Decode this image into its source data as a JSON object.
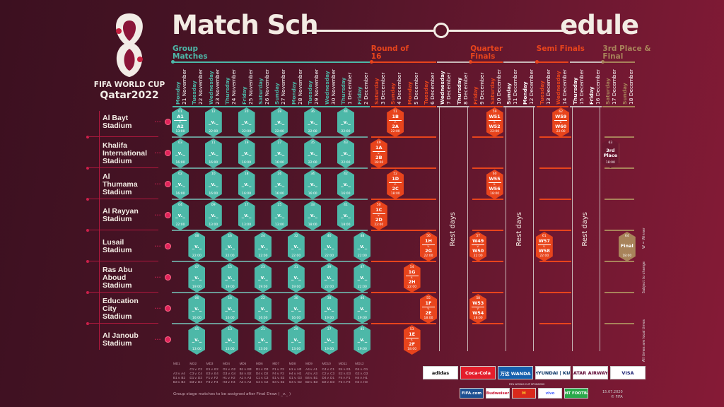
{
  "header": {
    "title_left": "Match Sch",
    "title_right": "edule",
    "logo_text_1": "FIFA WORLD CUP",
    "logo_text_2": "Qatar2022"
  },
  "phases": [
    {
      "label": "Group Matches",
      "color": "#4db8a8"
    },
    {
      "label": "Round of 16",
      "color": "#e8441c"
    },
    {
      "label": "Quarter Finals",
      "color": "#e8441c"
    },
    {
      "label": "Semi Finals",
      "color": "#e8441c"
    },
    {
      "label": "3rd Place & Final",
      "color": "#a8835a"
    }
  ],
  "days": [
    {
      "weekday": "Monday",
      "date": "21 November",
      "phase": 0
    },
    {
      "weekday": "Tuesday",
      "date": "22 November",
      "phase": 0
    },
    {
      "weekday": "Wednesday",
      "date": "23 November",
      "phase": 0
    },
    {
      "weekday": "Thursday",
      "date": "24 November",
      "phase": 0
    },
    {
      "weekday": "Friday",
      "date": "25 November",
      "phase": 0
    },
    {
      "weekday": "Saturday",
      "date": "26 November",
      "phase": 0
    },
    {
      "weekday": "Sunday",
      "date": "27 November",
      "phase": 0
    },
    {
      "weekday": "Monday",
      "date": "28 November",
      "phase": 0
    },
    {
      "weekday": "Tuesday",
      "date": "29 November",
      "phase": 0
    },
    {
      "weekday": "Wednesday",
      "date": "30 November",
      "phase": 0
    },
    {
      "weekday": "Thursday",
      "date": "1 December",
      "phase": 0
    },
    {
      "weekday": "Friday",
      "date": "2 December",
      "phase": 0
    },
    {
      "weekday": "Saturday",
      "date": "3 December",
      "phase": 1
    },
    {
      "weekday": "Sunday",
      "date": "4 December",
      "phase": 1
    },
    {
      "weekday": "Monday",
      "date": "5 December",
      "phase": 1
    },
    {
      "weekday": "Tuesday",
      "date": "6 December",
      "phase": 1
    },
    {
      "weekday": "Wednesday",
      "date": "7 December",
      "phase": -1
    },
    {
      "weekday": "Thursday",
      "date": "8 December",
      "phase": -1
    },
    {
      "weekday": "Friday",
      "date": "9 December",
      "phase": 2
    },
    {
      "weekday": "Saturday",
      "date": "10 December",
      "phase": 2
    },
    {
      "weekday": "Sunday",
      "date": "11 December",
      "phase": -1
    },
    {
      "weekday": "Monday",
      "date": "12 December",
      "phase": -1
    },
    {
      "weekday": "Tuesday",
      "date": "13 December",
      "phase": 3
    },
    {
      "weekday": "Wednesday",
      "date": "14 December",
      "phase": 3
    },
    {
      "weekday": "Thursday",
      "date": "15 December",
      "phase": -1
    },
    {
      "weekday": "Friday",
      "date": "16 December",
      "phase": -1
    },
    {
      "weekday": "Saturday",
      "date": "17 December",
      "phase": 4
    },
    {
      "weekday": "Sunday",
      "date": "18 December",
      "phase": 4
    }
  ],
  "rest_label": "Rest days",
  "stadiums": [
    {
      "name": [
        "Al Bayt",
        "Stadium"
      ],
      "matches": [
        {
          "no": "01",
          "date": "21 November",
          "home": "A1",
          "away": "A2",
          "time": "13:00",
          "stage": "group"
        },
        {
          "no": "12",
          "date": "23 November",
          "home": "_",
          "away": "_",
          "time": "22:00",
          "stage": "group"
        },
        {
          "no": "20",
          "date": "25 November",
          "home": "_",
          "away": "_",
          "time": "22:00",
          "stage": "group"
        },
        {
          "no": "28",
          "date": "27 November",
          "home": "_",
          "away": "_",
          "time": "22:00",
          "stage": "group"
        },
        {
          "no": "36",
          "date": "29 November",
          "home": "_",
          "away": "_",
          "time": "22:00",
          "stage": "group"
        },
        {
          "no": "44",
          "date": "1 December",
          "home": "_",
          "away": "_",
          "time": "22:00",
          "stage": "group"
        },
        {
          "no": "51",
          "date": "4 December",
          "home": "1B",
          "away": "2A",
          "time": "22:00",
          "stage": "ko"
        },
        {
          "no": "59",
          "date": "10 December",
          "home": "W51",
          "away": "W52",
          "time": "22:00",
          "stage": "ko"
        },
        {
          "no": "62",
          "date": "14 December",
          "home": "W59",
          "away": "W60",
          "time": "22:00",
          "stage": "ko"
        }
      ]
    },
    {
      "name": [
        "Khalifa",
        "International",
        "Stadium"
      ],
      "matches": [
        {
          "no": "03",
          "date": "21 November",
          "home": "_",
          "away": "_",
          "time": "16:00",
          "stage": "group"
        },
        {
          "no": "11",
          "date": "23 November",
          "home": "_",
          "away": "_",
          "time": "16:00",
          "stage": "group"
        },
        {
          "no": "19",
          "date": "25 November",
          "home": "_",
          "away": "_",
          "time": "16:00",
          "stage": "group"
        },
        {
          "no": "27",
          "date": "27 November",
          "home": "_",
          "away": "_",
          "time": "16:00",
          "stage": "group"
        },
        {
          "no": "35",
          "date": "29 November",
          "home": "_",
          "away": "_",
          "time": "22:00",
          "stage": "group"
        },
        {
          "no": "43",
          "date": "1 December",
          "home": "_",
          "away": "_",
          "time": "22:00",
          "stage": "group"
        },
        {
          "no": "49",
          "date": "3 December",
          "home": "1A",
          "away": "2B",
          "time": "18:00",
          "stage": "ko"
        },
        {
          "no": "63",
          "date": "17 December",
          "home": "3rd",
          "away": "Place",
          "time": "18:00",
          "stage": "third"
        }
      ]
    },
    {
      "name": [
        "Al",
        "Thumama",
        "Stadium"
      ],
      "matches": [
        {
          "no": "02",
          "date": "21 November",
          "home": "_",
          "away": "_",
          "time": "16:00",
          "stage": "group"
        },
        {
          "no": "10",
          "date": "23 November",
          "home": "_",
          "away": "_",
          "time": "16:00",
          "stage": "group"
        },
        {
          "no": "18",
          "date": "25 November",
          "home": "_",
          "away": "_",
          "time": "16:00",
          "stage": "group"
        },
        {
          "no": "26",
          "date": "27 November",
          "home": "_",
          "away": "_",
          "time": "16:00",
          "stage": "group"
        },
        {
          "no": "34",
          "date": "29 November",
          "home": "_",
          "away": "_",
          "time": "16:00",
          "stage": "group"
        },
        {
          "no": "42",
          "date": "1 December",
          "home": "_",
          "away": "_",
          "time": "16:00",
          "stage": "group"
        },
        {
          "no": "52",
          "date": "4 December",
          "home": "1D",
          "away": "2C",
          "time": "18:00",
          "stage": "ko"
        },
        {
          "no": "60",
          "date": "10 December",
          "home": "W55",
          "away": "W56",
          "time": "18:00",
          "stage": "ko"
        }
      ]
    },
    {
      "name": [
        "Al Rayyan",
        "Stadium"
      ],
      "matches": [
        {
          "no": "04",
          "date": "21 November",
          "home": "_",
          "away": "_",
          "time": "22:00",
          "stage": "group"
        },
        {
          "no": "09",
          "date": "23 November",
          "home": "_",
          "away": "_",
          "time": "13:00",
          "stage": "group"
        },
        {
          "no": "17",
          "date": "25 November",
          "home": "_",
          "away": "_",
          "time": "13:00",
          "stage": "group"
        },
        {
          "no": "25",
          "date": "27 November",
          "home": "_",
          "away": "_",
          "time": "13:00",
          "stage": "group"
        },
        {
          "no": "33",
          "date": "29 November",
          "home": "_",
          "away": "_",
          "time": "18:00",
          "stage": "group"
        },
        {
          "no": "41",
          "date": "1 December",
          "home": "_",
          "away": "_",
          "time": "18:00",
          "stage": "group"
        },
        {
          "no": "50",
          "date": "3 December",
          "home": "1C",
          "away": "2D",
          "time": "22:00",
          "stage": "ko"
        }
      ]
    },
    {
      "name": [
        "Lusail",
        "Stadium"
      ],
      "matches": [
        {
          "no": "08",
          "date": "22 November",
          "home": "_",
          "away": "_",
          "time": "22:00",
          "stage": "group"
        },
        {
          "no": "16",
          "date": "24 November",
          "home": "_",
          "away": "_",
          "time": "22:00",
          "stage": "group"
        },
        {
          "no": "24",
          "date": "26 November",
          "home": "_",
          "away": "_",
          "time": "22:00",
          "stage": "group"
        },
        {
          "no": "32",
          "date": "28 November",
          "home": "_",
          "away": "_",
          "time": "22:00",
          "stage": "group"
        },
        {
          "no": "40",
          "date": "30 November",
          "home": "_",
          "away": "_",
          "time": "22:00",
          "stage": "group"
        },
        {
          "no": "48",
          "date": "2 December",
          "home": "_",
          "away": "_",
          "time": "22:00",
          "stage": "group"
        },
        {
          "no": "56",
          "date": "6 December",
          "home": "1H",
          "away": "2G",
          "time": "22:00",
          "stage": "ko"
        },
        {
          "no": "57",
          "date": "9 December",
          "home": "W49",
          "away": "W50",
          "time": "22:00",
          "stage": "ko"
        },
        {
          "no": "61",
          "date": "13 December",
          "home": "W57",
          "away": "W58",
          "time": "22:00",
          "stage": "ko"
        },
        {
          "no": "64",
          "date": "18 December",
          "home": "Final",
          "away": "",
          "time": "18:00",
          "stage": "final"
        }
      ]
    },
    {
      "name": [
        "Ras Abu",
        "Aboud",
        "Stadium"
      ],
      "matches": [
        {
          "no": "07",
          "date": "22 November",
          "home": "_",
          "away": "_",
          "time": "19:00",
          "stage": "group"
        },
        {
          "no": "15",
          "date": "24 November",
          "home": "_",
          "away": "_",
          "time": "19:00",
          "stage": "group"
        },
        {
          "no": "23",
          "date": "26 November",
          "home": "_",
          "away": "_",
          "time": "19:00",
          "stage": "group"
        },
        {
          "no": "31",
          "date": "28 November",
          "home": "_",
          "away": "_",
          "time": "19:00",
          "stage": "group"
        },
        {
          "no": "39",
          "date": "30 November",
          "home": "_",
          "away": "_",
          "time": "22:00",
          "stage": "group"
        },
        {
          "no": "47",
          "date": "2 December",
          "home": "_",
          "away": "_",
          "time": "22:00",
          "stage": "group"
        },
        {
          "no": "54",
          "date": "5 December",
          "home": "1G",
          "away": "2H",
          "time": "22:00",
          "stage": "ko"
        }
      ]
    },
    {
      "name": [
        "Education",
        "City",
        "Stadium"
      ],
      "matches": [
        {
          "no": "06",
          "date": "22 November",
          "home": "_",
          "away": "_",
          "time": "16:00",
          "stage": "group"
        },
        {
          "no": "14",
          "date": "24 November",
          "home": "_",
          "away": "_",
          "time": "16:00",
          "stage": "group"
        },
        {
          "no": "22",
          "date": "26 November",
          "home": "_",
          "away": "_",
          "time": "16:00",
          "stage": "group"
        },
        {
          "no": "30",
          "date": "28 November",
          "home": "_",
          "away": "_",
          "time": "16:00",
          "stage": "group"
        },
        {
          "no": "38",
          "date": "30 November",
          "home": "_",
          "away": "_",
          "time": "19:00",
          "stage": "group"
        },
        {
          "no": "46",
          "date": "2 December",
          "home": "_",
          "away": "_",
          "time": "19:00",
          "stage": "group"
        },
        {
          "no": "55",
          "date": "6 December",
          "home": "1F",
          "away": "2E",
          "time": "18:00",
          "stage": "ko"
        },
        {
          "no": "58",
          "date": "9 December",
          "home": "W53",
          "away": "W54",
          "time": "18:00",
          "stage": "ko"
        }
      ]
    },
    {
      "name": [
        "Al Janoub",
        "Stadium"
      ],
      "matches": [
        {
          "no": "05",
          "date": "22 November",
          "home": "_",
          "away": "_",
          "time": "13:00",
          "stage": "group"
        },
        {
          "no": "13",
          "date": "24 November",
          "home": "_",
          "away": "_",
          "time": "13:00",
          "stage": "group"
        },
        {
          "no": "21",
          "date": "26 November",
          "home": "_",
          "away": "_",
          "time": "13:00",
          "stage": "group"
        },
        {
          "no": "29",
          "date": "28 November",
          "home": "_",
          "away": "_",
          "time": "13:00",
          "stage": "group"
        },
        {
          "no": "37",
          "date": "30 November",
          "home": "_",
          "away": "_",
          "time": "19:00",
          "stage": "group"
        },
        {
          "no": "45",
          "date": "2 December",
          "home": "_",
          "away": "_",
          "time": "19:00",
          "stage": "group"
        },
        {
          "no": "53",
          "date": "5 December",
          "home": "1E",
          "away": "2F",
          "time": "18:00",
          "stage": "ko"
        }
      ]
    }
  ],
  "versus": "v.",
  "colors": {
    "group": "#4db8a8",
    "ko": "#e8441c",
    "final": "#a8835a",
    "accent": "#e0245a"
  },
  "matchdays": [
    {
      "label": "MD1",
      "pairs": [
        "",
        "A3 v. A4",
        "B1 v. B2",
        "B3 v. B4"
      ]
    },
    {
      "label": "MD2",
      "pairs": [
        "C1 v. C2",
        "C3 v. C4",
        "D1 v. D2",
        "D3 v. D4"
      ]
    },
    {
      "label": "MD3",
      "pairs": [
        "E1 v. E2",
        "E3 v. E4",
        "F1 v. F2",
        "F3 v. F4"
      ]
    },
    {
      "label": "MD4",
      "pairs": [
        "G1 v. G2",
        "G3 v. G4",
        "H1 v. H2",
        "H3 v. H4"
      ]
    },
    {
      "label": "MD5",
      "pairs": [
        "B1 v. B3",
        "B4 v. B2",
        "A1 v. A3",
        "A4 v. A2"
      ]
    },
    {
      "label": "MD6",
      "pairs": [
        "D1 v. D3",
        "D4 v. D2",
        "C1 v. C3",
        "C4 v. C2"
      ]
    },
    {
      "label": "MD7",
      "pairs": [
        "F1 v. F3",
        "F4 v. F2",
        "E1 v. E3",
        "E4 v. E2"
      ]
    },
    {
      "label": "MD8",
      "pairs": [
        "H1 v. H3",
        "H4 v. H2",
        "G1 v. G3",
        "G4 v. G2"
      ]
    },
    {
      "label": "MD9",
      "pairs": [
        "A4 v. A1",
        "A2 v. A3",
        "B4 v. B1",
        "B2 v. B3"
      ]
    },
    {
      "label": "MD10",
      "pairs": [
        "C4 v. C1",
        "C2 v. C3",
        "D4 v. D1",
        "D2 v. D3"
      ]
    },
    {
      "label": "MD11",
      "pairs": [
        "E4 v. E1",
        "E2 v. E3",
        "F4 v. F1",
        "F2 v. F3"
      ]
    },
    {
      "label": "MD12",
      "pairs": [
        "G4 v. G1",
        "G2 v. G3",
        "H4 v. H1",
        "H2 v. H3"
      ]
    }
  ],
  "note": "Group stage matches to be assigned after Final Draw ( _v._ )",
  "side_notes": [
    "W = Winner",
    "Subject to change",
    "All times are local times"
  ],
  "sponsors_label": "FIFA WORLD CUP SPONSORS",
  "partners": [
    {
      "name": "adidas",
      "color": "#000",
      "bg": "#fff"
    },
    {
      "name": "Coca-Cola",
      "color": "#fff",
      "bg": "#e41e2b"
    },
    {
      "name": "万达 WANDA",
      "color": "#fff",
      "bg": "#1560ad"
    },
    {
      "name": "HYUNDAI | KIA",
      "color": "#002c5f",
      "bg": "#fff"
    },
    {
      "name": "QATAR AIRWAYS",
      "color": "#5c0632",
      "bg": "#fff"
    },
    {
      "name": "VISA",
      "color": "#1a1f71",
      "bg": "#fff"
    }
  ],
  "sponsors": [
    {
      "name": "FIFA.com",
      "color": "#fff",
      "bg": "#1d4f91"
    },
    {
      "name": "Budweiser",
      "color": "#c8102e",
      "bg": "#fff"
    },
    {
      "name": "M",
      "color": "#ffc72c",
      "bg": "#da291c"
    },
    {
      "name": "vivo",
      "color": "#415fff",
      "bg": "#fff"
    },
    {
      "name": "LIGHT FOOTBALL",
      "color": "#fff",
      "bg": "#2aa84a"
    }
  ],
  "footer": {
    "date": "15.07.2020",
    "copyright": "© FIFA"
  }
}
